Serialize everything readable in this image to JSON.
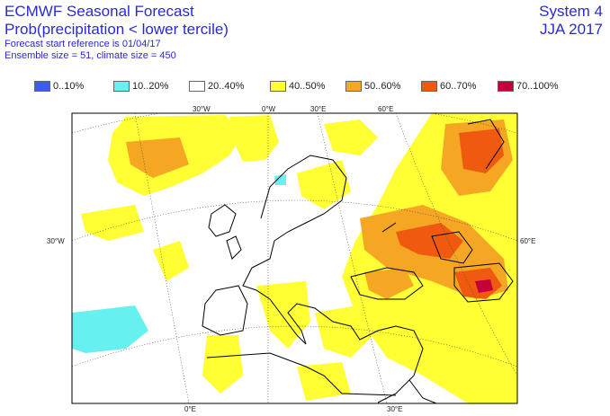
{
  "header": {
    "title": "ECMWF Seasonal Forecast",
    "subtitle": "Prob(precipitation < lower tercile)",
    "start_reference": "Forecast start reference is 01/04/17",
    "ensemble": "Ensemble size = 51, climate size = 450",
    "system": "System 4",
    "season": "JJA 2017"
  },
  "legend": [
    {
      "label": "0..10%",
      "color": "#3b5cf0"
    },
    {
      "label": "10..20%",
      "color": "#66f0f0"
    },
    {
      "label": "20..40%",
      "color": "#ffffff"
    },
    {
      "label": "40..50%",
      "color": "#ffff33"
    },
    {
      "label": "50..60%",
      "color": "#f5a623"
    },
    {
      "label": "60..70%",
      "color": "#f05a10"
    },
    {
      "label": "70..100%",
      "color": "#c4003a"
    }
  ],
  "map": {
    "region": "Europe",
    "graticule_labels": {
      "top": [
        "30°W",
        "0°W",
        "30°E",
        "60°E"
      ],
      "left": [
        "30°W"
      ],
      "right": [
        "60°E"
      ],
      "bottom": [
        "0°E",
        "30°E"
      ]
    },
    "colors": {
      "frame": "#000000",
      "coast": "#000000",
      "grid": "#444444"
    }
  }
}
